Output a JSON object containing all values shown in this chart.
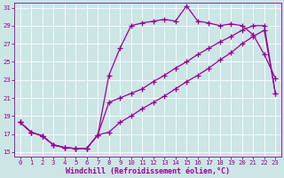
{
  "xlabel": "Windchill (Refroidissement éolien,°C)",
  "background_color": "#cce5e5",
  "line_color": "#990099",
  "grid_color": "#ffffff",
  "xlim_min": -0.5,
  "xlim_max": 23.5,
  "ylim_min": 14.5,
  "ylim_max": 31.5,
  "xticks": [
    0,
    1,
    2,
    3,
    4,
    5,
    6,
    7,
    8,
    9,
    10,
    11,
    12,
    13,
    14,
    15,
    16,
    17,
    18,
    19,
    20,
    21,
    22,
    23
  ],
  "yticks": [
    15,
    17,
    19,
    21,
    23,
    25,
    27,
    29,
    31
  ],
  "s1_x": [
    0,
    1,
    2,
    3,
    4,
    5,
    6,
    7,
    8,
    9,
    10,
    11,
    12,
    13,
    14,
    15,
    16,
    17,
    18,
    19,
    20,
    21,
    22,
    23
  ],
  "s1_y": [
    18.3,
    17.2,
    16.8,
    15.8,
    15.5,
    15.4,
    15.4,
    16.9,
    17.2,
    18.3,
    19.0,
    19.8,
    20.5,
    21.2,
    22.0,
    22.8,
    23.5,
    24.3,
    25.2,
    26.0,
    27.0,
    27.8,
    28.5,
    21.5
  ],
  "s2_x": [
    0,
    1,
    2,
    3,
    4,
    5,
    6,
    7,
    8,
    9,
    10,
    11,
    12,
    13,
    14,
    15,
    16,
    17,
    18,
    19,
    20,
    21,
    22,
    23
  ],
  "s2_y": [
    18.3,
    17.2,
    16.8,
    15.8,
    15.5,
    15.4,
    15.4,
    16.9,
    23.5,
    26.5,
    29.0,
    29.3,
    29.5,
    29.7,
    29.5,
    31.2,
    29.5,
    29.3,
    29.0,
    29.2,
    29.0,
    28.0,
    25.8,
    23.2
  ],
  "s3_x": [
    0,
    1,
    2,
    3,
    4,
    5,
    6,
    7,
    8,
    9,
    10,
    11,
    12,
    13,
    14,
    15,
    16,
    17,
    18,
    19,
    20,
    21,
    22,
    23
  ],
  "s3_y": [
    18.3,
    17.2,
    16.8,
    15.8,
    15.5,
    15.4,
    15.4,
    16.9,
    20.5,
    21.0,
    21.5,
    22.0,
    22.8,
    23.5,
    24.3,
    25.0,
    25.8,
    26.5,
    27.2,
    27.8,
    28.5,
    29.0,
    29.0,
    21.5
  ],
  "marker": "+",
  "markersize": 4,
  "markeredgewidth": 0.9,
  "linewidth": 0.9,
  "tick_fontsize": 5.2,
  "label_fontsize": 6.0,
  "figwidth": 3.2,
  "figheight": 2.0,
  "dpi": 100
}
